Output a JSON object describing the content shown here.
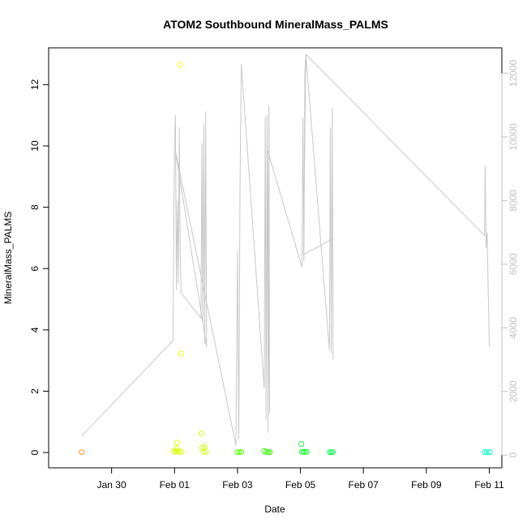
{
  "chart_data": {
    "type": "scatter",
    "title": "ATOM2 Southbound MineralMass_PALMS",
    "xlabel": "Date",
    "ylabel": "MineralMass_PALMS",
    "y2label": "",
    "xlim": [
      -3.0,
      11.4
    ],
    "ylim": [
      -0.5,
      13.2
    ],
    "y2lim": [
      -400,
      12800
    ],
    "x_ticks": [
      {
        "value": -1,
        "label": "Jan 30"
      },
      {
        "value": 1,
        "label": "Feb 01"
      },
      {
        "value": 3,
        "label": "Feb 03"
      },
      {
        "value": 5,
        "label": "Feb 05"
      },
      {
        "value": 7,
        "label": "Feb 07"
      },
      {
        "value": 9,
        "label": "Feb 09"
      },
      {
        "value": 11,
        "label": "Feb 11"
      }
    ],
    "y_ticks": [
      0,
      2,
      4,
      6,
      8,
      10,
      12
    ],
    "y2_ticks": [
      0,
      2000,
      4000,
      6000,
      8000,
      10000,
      12000
    ],
    "grid": false,
    "colors": {
      "line": "#c8c8c8",
      "right_axis": "#c0c0c0"
    },
    "series": [
      {
        "type": "scatter",
        "axis": "left",
        "points": [
          {
            "x": -1.95,
            "y": 0.01,
            "color": "#ff8c1a"
          },
          {
            "x": 0.98,
            "y": 0.05,
            "color": "#d9ff00"
          },
          {
            "x": 1.02,
            "y": 0.02,
            "color": "#d9ff00"
          },
          {
            "x": 1.05,
            "y": 0.12,
            "color": "#e0ff00"
          },
          {
            "x": 1.08,
            "y": 0.32,
            "color": "#e0ff00"
          },
          {
            "x": 1.1,
            "y": 0.04,
            "color": "#d9ff00"
          },
          {
            "x": 1.14,
            "y": 0.03,
            "color": "#d9ff00"
          },
          {
            "x": 1.17,
            "y": 12.65,
            "color": "#ffff00"
          },
          {
            "x": 1.2,
            "y": 3.22,
            "color": "#f0ff00"
          },
          {
            "x": 1.22,
            "y": 0.02,
            "color": "#d9ff00"
          },
          {
            "x": 1.85,
            "y": 0.62,
            "color": "#ccff00"
          },
          {
            "x": 1.88,
            "y": 0.15,
            "color": "#ccff00"
          },
          {
            "x": 1.92,
            "y": 0.02,
            "color": "#ccff00"
          },
          {
            "x": 1.96,
            "y": 0.18,
            "color": "#ccff00"
          },
          {
            "x": 2.0,
            "y": 0.03,
            "color": "#ccff00"
          },
          {
            "x": 3.0,
            "y": 0.01,
            "color": "#55ff00"
          },
          {
            "x": 3.06,
            "y": 0.01,
            "color": "#55ff00"
          },
          {
            "x": 3.12,
            "y": 0.02,
            "color": "#55ff00"
          },
          {
            "x": 3.85,
            "y": 0.05,
            "color": "#33ff00"
          },
          {
            "x": 3.92,
            "y": 0.02,
            "color": "#33ff00"
          },
          {
            "x": 3.98,
            "y": 0.01,
            "color": "#33ff00"
          },
          {
            "x": 4.03,
            "y": 0.01,
            "color": "#33ff00"
          },
          {
            "x": 5.03,
            "y": 0.28,
            "color": "#1aff33"
          },
          {
            "x": 5.05,
            "y": 0.02,
            "color": "#1aff33"
          },
          {
            "x": 5.1,
            "y": 0.02,
            "color": "#1aff33"
          },
          {
            "x": 5.15,
            "y": 0.02,
            "color": "#1aff33"
          },
          {
            "x": 5.2,
            "y": 0.02,
            "color": "#1aff33"
          },
          {
            "x": 5.93,
            "y": 0.01,
            "color": "#00ff4d"
          },
          {
            "x": 5.98,
            "y": 0.01,
            "color": "#00ff4d"
          },
          {
            "x": 6.03,
            "y": 0.01,
            "color": "#00ff4d"
          },
          {
            "x": 10.85,
            "y": 0.01,
            "color": "#00ffc8"
          },
          {
            "x": 10.92,
            "y": 0.01,
            "color": "#00ffc8"
          },
          {
            "x": 11.02,
            "y": 0.01,
            "color": "#00ffd2"
          }
        ]
      },
      {
        "type": "line",
        "axis": "right",
        "points": [
          [
            -1.95,
            600
          ],
          [
            0.95,
            3600
          ],
          [
            1.0,
            9900
          ],
          [
            1.03,
            10700
          ],
          [
            1.06,
            5200
          ],
          [
            1.09,
            8000
          ],
          [
            1.12,
            5400
          ],
          [
            1.15,
            10300
          ],
          [
            1.18,
            6300
          ],
          [
            1.21,
            5100
          ],
          [
            1.84,
            4300
          ],
          [
            1.87,
            9800
          ],
          [
            1.9,
            4200
          ],
          [
            1.93,
            10400
          ],
          [
            1.96,
            3500
          ],
          [
            1.99,
            10800
          ],
          [
            2.02,
            3400
          ],
          [
            1.02,
            9600
          ],
          [
            2.95,
            300
          ],
          [
            3.0,
            6400
          ],
          [
            3.04,
            500
          ],
          [
            3.08,
            8300
          ],
          [
            3.12,
            12300
          ],
          [
            3.85,
            2100
          ],
          [
            3.88,
            10600
          ],
          [
            3.91,
            1100
          ],
          [
            3.94,
            10700
          ],
          [
            3.97,
            700
          ],
          [
            4.0,
            11000
          ],
          [
            4.02,
            1300
          ],
          [
            3.95,
            9600
          ],
          [
            5.05,
            5900
          ],
          [
            5.08,
            10600
          ],
          [
            5.11,
            6100
          ],
          [
            5.14,
            12000
          ],
          [
            5.17,
            12600
          ],
          [
            5.92,
            3300
          ],
          [
            5.95,
            10300
          ],
          [
            5.98,
            3200
          ],
          [
            6.01,
            10900
          ],
          [
            6.04,
            3000
          ],
          [
            6.03,
            6800
          ],
          [
            5.1,
            6300
          ],
          [
            5.17,
            12600
          ],
          [
            10.85,
            6900
          ],
          [
            10.87,
            9100
          ],
          [
            10.9,
            6500
          ],
          [
            10.93,
            7000
          ],
          [
            11.0,
            3400
          ]
        ]
      }
    ]
  }
}
